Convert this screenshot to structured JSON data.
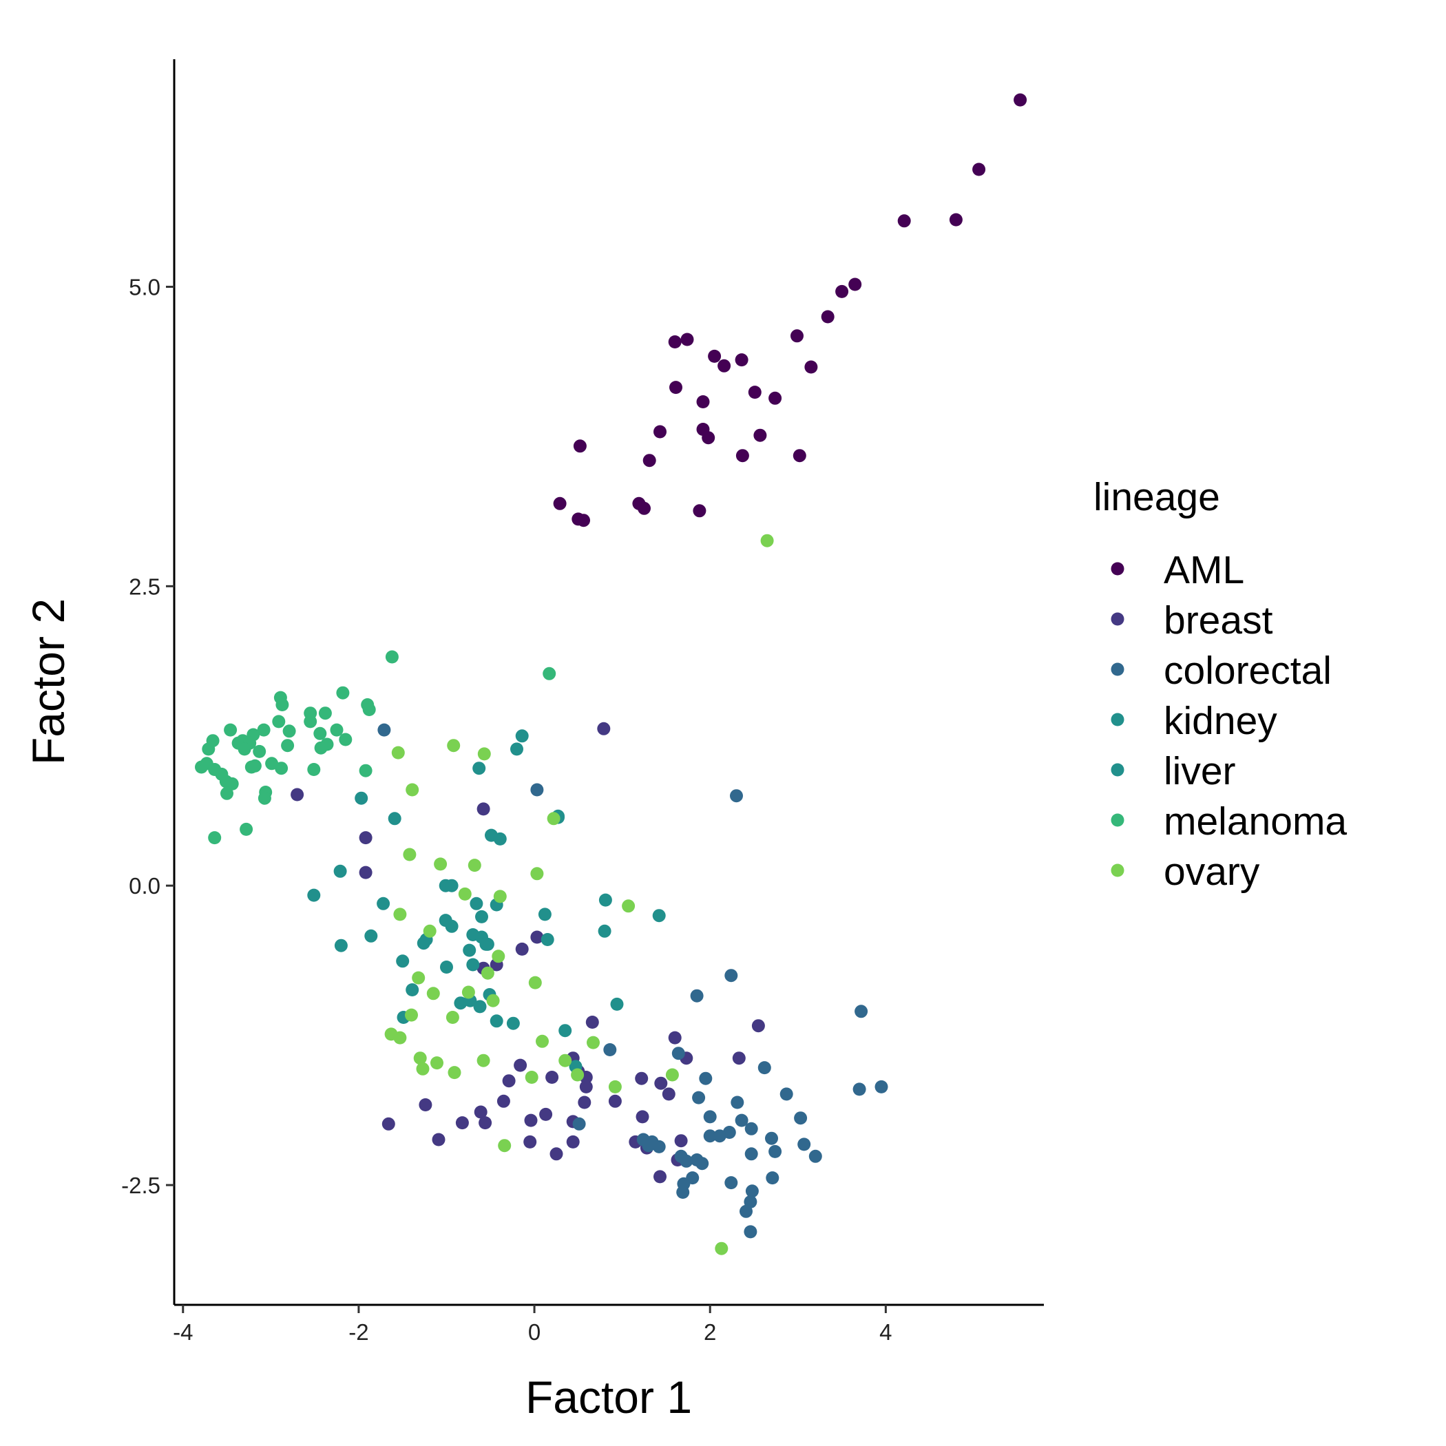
{
  "chart_data": {
    "type": "scatter",
    "title": "",
    "xlabel": "Factor 1",
    "ylabel": "Factor 2",
    "xlim": [
      -4.1,
      5.8
    ],
    "ylim": [
      -3.5,
      6.9
    ],
    "xticks": [
      -4,
      -2,
      0,
      2,
      4
    ],
    "xtick_labels": [
      "-4",
      "-2",
      "0",
      "2",
      "4"
    ],
    "yticks": [
      -2.5,
      0.0,
      2.5,
      5.0
    ],
    "ytick_labels": [
      "-2.5",
      "0.0",
      "2.5",
      "5.0"
    ],
    "grid": false,
    "legend": {
      "title": "lineage",
      "placement": "right"
    },
    "series": [
      {
        "name": "AML",
        "color": "#440154",
        "points": [
          [
            5.53,
            6.56
          ],
          [
            5.06,
            5.98
          ],
          [
            4.21,
            5.55
          ],
          [
            4.8,
            5.56
          ],
          [
            3.65,
            5.02
          ],
          [
            3.5,
            4.96
          ],
          [
            3.34,
            4.75
          ],
          [
            2.99,
            4.59
          ],
          [
            3.15,
            4.33
          ],
          [
            2.36,
            4.39
          ],
          [
            2.05,
            4.42
          ],
          [
            2.16,
            4.34
          ],
          [
            1.6,
            4.54
          ],
          [
            1.74,
            4.56
          ],
          [
            1.61,
            4.16
          ],
          [
            1.92,
            4.04
          ],
          [
            2.51,
            4.12
          ],
          [
            2.74,
            4.07
          ],
          [
            1.43,
            3.79
          ],
          [
            1.92,
            3.81
          ],
          [
            1.98,
            3.74
          ],
          [
            2.57,
            3.76
          ],
          [
            0.52,
            3.67
          ],
          [
            1.31,
            3.55
          ],
          [
            2.37,
            3.59
          ],
          [
            3.02,
            3.59
          ],
          [
            1.19,
            3.19
          ],
          [
            1.25,
            3.15
          ],
          [
            0.29,
            3.19
          ],
          [
            1.88,
            3.13
          ],
          [
            0.5,
            3.06
          ],
          [
            0.56,
            3.05
          ]
        ]
      },
      {
        "name": "breast",
        "color": "#443983",
        "points": [
          [
            0.79,
            1.31
          ],
          [
            -2.7,
            0.76
          ],
          [
            -0.58,
            0.64
          ],
          [
            -1.92,
            0.4
          ],
          [
            -1.92,
            0.11
          ],
          [
            0.03,
            -0.43
          ],
          [
            -0.14,
            -0.53
          ],
          [
            -0.43,
            -0.66
          ],
          [
            -0.58,
            -0.69
          ],
          [
            0.66,
            -1.14
          ],
          [
            2.55,
            -1.17
          ],
          [
            1.6,
            -1.27
          ],
          [
            0.44,
            -1.44
          ],
          [
            -0.16,
            -1.5
          ],
          [
            1.73,
            -1.44
          ],
          [
            2.33,
            -1.44
          ],
          [
            0.5,
            -1.55
          ],
          [
            0.59,
            -1.6
          ],
          [
            1.22,
            -1.61
          ],
          [
            1.44,
            -1.65
          ],
          [
            -0.29,
            -1.63
          ],
          [
            0.2,
            -1.6
          ],
          [
            0.59,
            -1.68
          ],
          [
            1.53,
            -1.74
          ],
          [
            -1.24,
            -1.83
          ],
          [
            -0.35,
            -1.8
          ],
          [
            0.57,
            -1.81
          ],
          [
            0.92,
            -1.8
          ],
          [
            -0.61,
            -1.89
          ],
          [
            0.13,
            -1.91
          ],
          [
            -0.04,
            -1.96
          ],
          [
            1.23,
            -1.93
          ],
          [
            -1.66,
            -1.99
          ],
          [
            -0.82,
            -1.98
          ],
          [
            -0.56,
            -1.98
          ],
          [
            0.44,
            -1.97
          ],
          [
            -1.09,
            -2.12
          ],
          [
            -0.05,
            -2.14
          ],
          [
            0.44,
            -2.14
          ],
          [
            1.15,
            -2.14
          ],
          [
            1.67,
            -2.13
          ],
          [
            1.28,
            -2.19
          ],
          [
            0.25,
            -2.24
          ],
          [
            1.63,
            -2.29
          ],
          [
            1.43,
            -2.43
          ]
        ]
      },
      {
        "name": "colorectal",
        "color": "#31688E",
        "points": [
          [
            -1.71,
            1.3
          ],
          [
            0.03,
            0.8
          ],
          [
            2.3,
            0.75
          ],
          [
            2.24,
            -0.75
          ],
          [
            1.85,
            -0.92
          ],
          [
            3.72,
            -1.05
          ],
          [
            0.86,
            -1.37
          ],
          [
            1.64,
            -1.4
          ],
          [
            2.62,
            -1.52
          ],
          [
            1.95,
            -1.61
          ],
          [
            2.87,
            -1.74
          ],
          [
            3.7,
            -1.7
          ],
          [
            3.95,
            -1.68
          ],
          [
            1.87,
            -1.77
          ],
          [
            2.31,
            -1.81
          ],
          [
            2.0,
            -1.93
          ],
          [
            3.03,
            -1.94
          ],
          [
            2.36,
            -1.96
          ],
          [
            0.51,
            -1.99
          ],
          [
            2.47,
            -2.03
          ],
          [
            2.22,
            -2.06
          ],
          [
            2.0,
            -2.09
          ],
          [
            2.11,
            -2.09
          ],
          [
            2.7,
            -2.11
          ],
          [
            1.24,
            -2.12
          ],
          [
            1.34,
            -2.14
          ],
          [
            1.3,
            -2.17
          ],
          [
            1.42,
            -2.18
          ],
          [
            3.07,
            -2.16
          ],
          [
            2.74,
            -2.22
          ],
          [
            2.47,
            -2.24
          ],
          [
            3.2,
            -2.26
          ],
          [
            1.67,
            -2.26
          ],
          [
            1.73,
            -2.3
          ],
          [
            1.85,
            -2.29
          ],
          [
            1.91,
            -2.32
          ],
          [
            2.71,
            -2.44
          ],
          [
            1.8,
            -2.44
          ],
          [
            2.24,
            -2.48
          ],
          [
            1.7,
            -2.49
          ],
          [
            2.48,
            -2.55
          ],
          [
            1.69,
            -2.56
          ],
          [
            2.46,
            -2.64
          ],
          [
            2.41,
            -2.72
          ],
          [
            2.46,
            -2.89
          ]
        ]
      },
      {
        "name": "kidney",
        "color": "#21908C",
        "points": [
          [
            -0.14,
            1.25
          ],
          [
            -0.2,
            1.14
          ],
          [
            -0.63,
            0.98
          ],
          [
            0.27,
            0.57
          ],
          [
            -0.49,
            0.42
          ],
          [
            -0.39,
            0.39
          ],
          [
            -1.01,
            0.0
          ],
          [
            -0.94,
            0.0
          ],
          [
            -0.66,
            -0.15
          ],
          [
            -0.43,
            -0.16
          ],
          [
            0.81,
            -0.12
          ],
          [
            1.42,
            -0.25
          ],
          [
            -0.6,
            -0.26
          ],
          [
            -1.01,
            -0.29
          ],
          [
            -0.94,
            -0.34
          ],
          [
            -0.7,
            -0.41
          ],
          [
            -0.6,
            -0.43
          ],
          [
            -0.53,
            -0.49
          ],
          [
            -1.23,
            -0.45
          ],
          [
            -1.26,
            -0.48
          ],
          [
            0.15,
            -0.45
          ],
          [
            0.8,
            -0.38
          ],
          [
            -1.0,
            -0.68
          ],
          [
            -0.51,
            -0.91
          ],
          [
            -0.84,
            -0.98
          ],
          [
            -0.43,
            -1.13
          ],
          [
            -0.24,
            -1.15
          ],
          [
            -0.73,
            -0.96
          ],
          [
            -0.62,
            -1.01
          ]
        ]
      },
      {
        "name": "liver",
        "color": "#21908C",
        "points": [
          [
            0.27,
            0.58
          ],
          [
            -1.97,
            0.73
          ],
          [
            -1.59,
            0.56
          ],
          [
            -2.21,
            0.12
          ],
          [
            -2.51,
            -0.08
          ],
          [
            -1.72,
            -0.15
          ],
          [
            0.12,
            -0.24
          ],
          [
            -1.86,
            -0.42
          ],
          [
            -2.2,
            -0.5
          ],
          [
            -1.5,
            -0.63
          ],
          [
            -0.74,
            -0.54
          ],
          [
            -0.7,
            -0.66
          ],
          [
            -0.55,
            -0.49
          ],
          [
            0.94,
            -0.99
          ],
          [
            -1.39,
            -0.87
          ],
          [
            -1.49,
            -1.1
          ],
          [
            0.35,
            -1.21
          ],
          [
            0.47,
            -1.51
          ]
        ]
      },
      {
        "name": "melanoma",
        "color": "#35B779",
        "points": [
          [
            -1.62,
            1.91
          ],
          [
            0.17,
            1.77
          ],
          [
            -2.89,
            1.57
          ],
          [
            -2.87,
            1.51
          ],
          [
            -2.18,
            1.61
          ],
          [
            -1.9,
            1.51
          ],
          [
            -1.88,
            1.47
          ],
          [
            -2.55,
            1.44
          ],
          [
            -2.38,
            1.44
          ],
          [
            -2.91,
            1.37
          ],
          [
            -2.55,
            1.37
          ],
          [
            -3.46,
            1.3
          ],
          [
            -3.08,
            1.3
          ],
          [
            -3.2,
            1.26
          ],
          [
            -2.79,
            1.29
          ],
          [
            -2.25,
            1.3
          ],
          [
            -2.15,
            1.22
          ],
          [
            -2.44,
            1.27
          ],
          [
            -3.66,
            1.21
          ],
          [
            -3.71,
            1.14
          ],
          [
            -3.32,
            1.21
          ],
          [
            -3.37,
            1.19
          ],
          [
            -3.24,
            1.19
          ],
          [
            -3.3,
            1.14
          ],
          [
            -3.13,
            1.12
          ],
          [
            -2.81,
            1.17
          ],
          [
            -2.36,
            1.18
          ],
          [
            -2.43,
            1.15
          ],
          [
            -3.79,
            0.99
          ],
          [
            -3.73,
            1.02
          ],
          [
            -3.64,
            0.97
          ],
          [
            -3.56,
            0.93
          ],
          [
            -3.51,
            0.87
          ],
          [
            -3.44,
            0.85
          ],
          [
            -3.22,
            0.99
          ],
          [
            -3.18,
            1.0
          ],
          [
            -2.99,
            1.02
          ],
          [
            -2.88,
            0.98
          ],
          [
            -2.51,
            0.97
          ],
          [
            -1.92,
            0.96
          ],
          [
            -3.5,
            0.77
          ],
          [
            -3.06,
            0.78
          ],
          [
            -3.07,
            0.73
          ],
          [
            -3.28,
            0.47
          ],
          [
            -3.64,
            0.4
          ]
        ]
      },
      {
        "name": "ovary",
        "color": "#7AD151",
        "points": [
          [
            2.65,
            2.88
          ],
          [
            -0.92,
            1.17
          ],
          [
            -0.57,
            1.1
          ],
          [
            -1.55,
            1.11
          ],
          [
            -1.39,
            0.8
          ],
          [
            0.22,
            0.56
          ],
          [
            -1.42,
            0.26
          ],
          [
            -1.07,
            0.18
          ],
          [
            -0.68,
            0.17
          ],
          [
            0.03,
            0.1
          ],
          [
            -0.79,
            -0.07
          ],
          [
            -0.39,
            -0.09
          ],
          [
            1.07,
            -0.17
          ],
          [
            -1.53,
            -0.24
          ],
          [
            -1.19,
            -0.38
          ],
          [
            -0.41,
            -0.59
          ],
          [
            -0.53,
            -0.73
          ],
          [
            -1.32,
            -0.77
          ],
          [
            0.01,
            -0.81
          ],
          [
            -1.15,
            -0.9
          ],
          [
            -0.75,
            -0.89
          ],
          [
            -0.47,
            -0.96
          ],
          [
            -1.4,
            -1.08
          ],
          [
            -0.93,
            -1.1
          ],
          [
            -1.63,
            -1.24
          ],
          [
            -1.53,
            -1.27
          ],
          [
            0.09,
            -1.3
          ],
          [
            0.67,
            -1.31
          ],
          [
            -1.3,
            -1.44
          ],
          [
            -1.11,
            -1.48
          ],
          [
            -0.58,
            -1.46
          ],
          [
            0.35,
            -1.46
          ],
          [
            -1.27,
            -1.53
          ],
          [
            -0.91,
            -1.56
          ],
          [
            -0.03,
            -1.6
          ],
          [
            0.49,
            -1.58
          ],
          [
            1.57,
            -1.58
          ],
          [
            0.92,
            -1.68
          ],
          [
            -0.34,
            -2.17
          ],
          [
            2.13,
            -3.03
          ]
        ]
      }
    ]
  }
}
